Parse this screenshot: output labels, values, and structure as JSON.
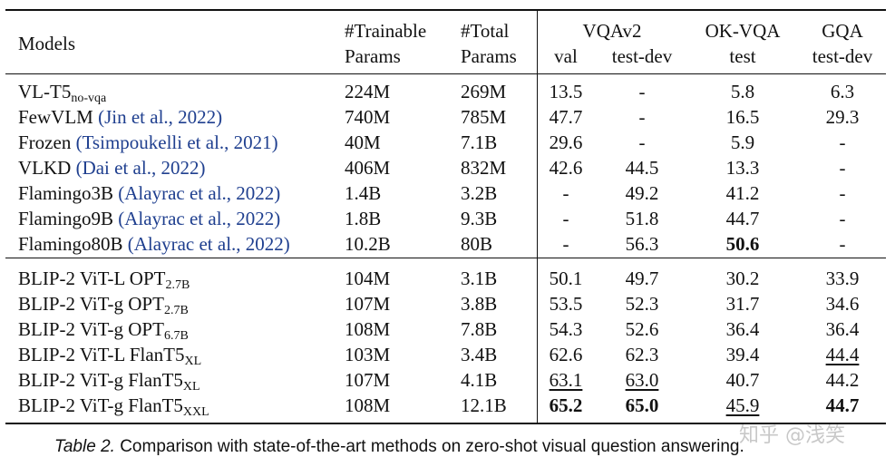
{
  "header": {
    "models": "Models",
    "trainable_1": "#Trainable",
    "trainable_2": "Params",
    "total_1": "#Total",
    "total_2": "Params",
    "vqav2": "VQAv2",
    "okvqa": "OK-VQA",
    "gqa": "GQA",
    "val": "val",
    "testdev": "test-dev",
    "test": "test",
    "gqa_testdev": "test-dev"
  },
  "rows": [
    {
      "name": "VL-T5",
      "sub": "no-vqa",
      "cite": "",
      "trainable": "224M",
      "total": "269M",
      "val": "13.5",
      "testdev": "-",
      "okvqa": "5.8",
      "gqa": "6.3"
    },
    {
      "name": "FewVLM ",
      "sub": "",
      "cite": "(Jin et al., 2022)",
      "trainable": "740M",
      "total": "785M",
      "val": "47.7",
      "testdev": "-",
      "okvqa": "16.5",
      "gqa": "29.3"
    },
    {
      "name": "Frozen ",
      "sub": "",
      "cite": "(Tsimpoukelli et al., 2021)",
      "trainable": "40M",
      "total": "7.1B",
      "val": "29.6",
      "testdev": "-",
      "okvqa": "5.9",
      "gqa": "-"
    },
    {
      "name": "VLKD ",
      "sub": "",
      "cite": "(Dai et al., 2022)",
      "trainable": "406M",
      "total": "832M",
      "val": "42.6",
      "testdev": "44.5",
      "okvqa": "13.3",
      "gqa": "-"
    },
    {
      "name": "Flamingo3B ",
      "sub": "",
      "cite": "(Alayrac et al., 2022)",
      "trainable": "1.4B",
      "total": "3.2B",
      "val": "-",
      "testdev": "49.2",
      "okvqa": "41.2",
      "gqa": "-"
    },
    {
      "name": "Flamingo9B ",
      "sub": "",
      "cite": "(Alayrac et al., 2022)",
      "trainable": "1.8B",
      "total": "9.3B",
      "val": "-",
      "testdev": "51.8",
      "okvqa": "44.7",
      "gqa": "-"
    },
    {
      "name": "Flamingo80B ",
      "sub": "",
      "cite": "(Alayrac et al., 2022)",
      "trainable": "10.2B",
      "total": "80B",
      "val": "-",
      "testdev": "56.3",
      "okvqa": "50.6",
      "gqa": "-"
    },
    {
      "name": "BLIP-2 ViT-L OPT",
      "sub": "2.7B",
      "cite": "",
      "trainable": "104M",
      "total": "3.1B",
      "val": "50.1",
      "testdev": "49.7",
      "okvqa": "30.2",
      "gqa": "33.9"
    },
    {
      "name": "BLIP-2 ViT-g OPT",
      "sub": "2.7B",
      "cite": "",
      "trainable": "107M",
      "total": "3.8B",
      "val": "53.5",
      "testdev": "52.3",
      "okvqa": "31.7",
      "gqa": "34.6"
    },
    {
      "name": "BLIP-2 ViT-g OPT",
      "sub": "6.7B",
      "cite": "",
      "trainable": "108M",
      "total": "7.8B",
      "val": "54.3",
      "testdev": "52.6",
      "okvqa": "36.4",
      "gqa": "36.4"
    },
    {
      "name": "BLIP-2 ViT-L FlanT5",
      "sub": "XL",
      "cite": "",
      "trainable": "103M",
      "total": "3.4B",
      "val": "62.6",
      "testdev": "62.3",
      "okvqa": "39.4",
      "gqa": "44.4"
    },
    {
      "name": "BLIP-2 ViT-g FlanT5",
      "sub": "XL",
      "cite": "",
      "trainable": "107M",
      "total": "4.1B",
      "val": "63.1",
      "testdev": "63.0",
      "okvqa": "40.7",
      "gqa": "44.2"
    },
    {
      "name": "BLIP-2 ViT-g FlanT5",
      "sub": "XXL",
      "cite": "",
      "trainable": "108M",
      "total": "12.1B",
      "val": "65.2",
      "testdev": "65.0",
      "okvqa": "45.9",
      "gqa": "44.7"
    }
  ],
  "caption": {
    "label": "Table 2.",
    "text": " Comparison with state-of-the-art methods on zero-shot visual question answering."
  },
  "watermark": "知乎 @浅笑"
}
